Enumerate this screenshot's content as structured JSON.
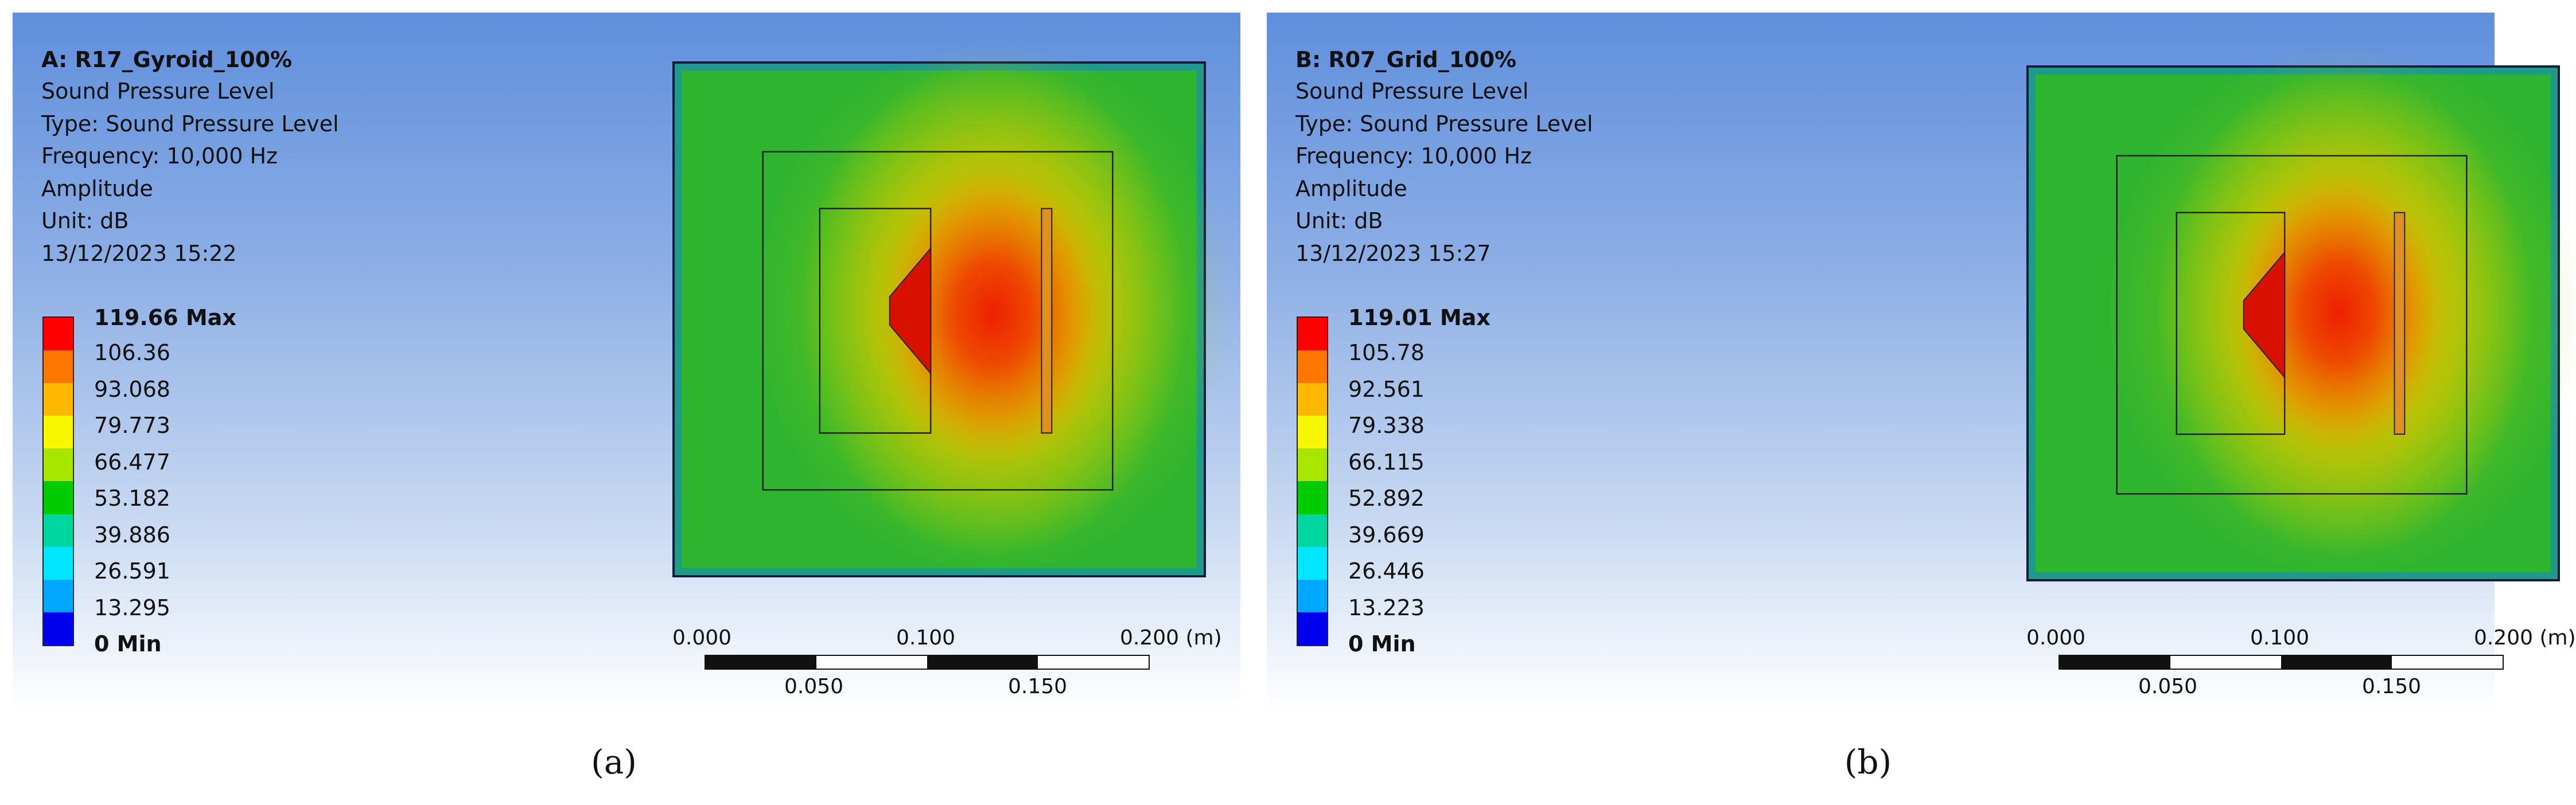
{
  "panels": [
    {
      "id": "a",
      "title": "A: R17_Gyroid_100%",
      "info": [
        "Sound Pressure Level",
        "Type: Sound Pressure Level",
        "Frequency: 10,000 Hz",
        "Amplitude",
        "Unit: dB",
        "13/12/2023 15:22"
      ],
      "legend": [
        "119.66 Max",
        "106.36",
        "93.068",
        "79.773",
        "66.477",
        "53.182",
        "39.886",
        "26.591",
        "13.295",
        "0 Min"
      ],
      "scale": {
        "top": [
          "0.000",
          "0.100",
          "0.200 (m)"
        ],
        "bottom": [
          "0.050",
          "0.150"
        ]
      },
      "caption": "(a)"
    },
    {
      "id": "b",
      "title": "B: R07_Grid_100%",
      "info": [
        "Sound Pressure Level",
        "Type: Sound Pressure Level",
        "Frequency: 10,000 Hz",
        "Amplitude",
        "Unit: dB",
        "13/12/2023 15:27"
      ],
      "legend": [
        "119.01 Max",
        "105.78",
        "92.561",
        "79.338",
        "66.115",
        "52.892",
        "39.669",
        "26.446",
        "13.223",
        "0 Min"
      ],
      "scale": {
        "top": [
          "0.000",
          "0.100",
          "0.200 (m)"
        ],
        "bottom": [
          "0.050",
          "0.150"
        ]
      },
      "caption": "(b)"
    }
  ],
  "colormap": [
    "#ff0000",
    "#ff7700",
    "#ffb800",
    "#f7f700",
    "#a8e600",
    "#00cc00",
    "#00d6a0",
    "#00e6ff",
    "#00a8ff",
    "#0000ee"
  ]
}
